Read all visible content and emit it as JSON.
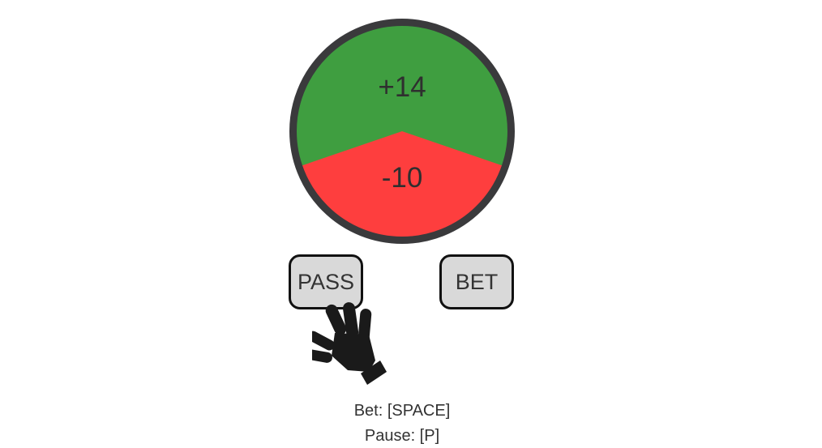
{
  "wheel": {
    "win_label": "+14",
    "lose_label": "-10",
    "win_color": "#3f9e40",
    "lose_color": "#fe3e3e",
    "rim_color": "#3a3a3c"
  },
  "buttons": {
    "pass_label": "PASS",
    "bet_label": "BET"
  },
  "cursor_icon": "hand-icon",
  "hints": {
    "bet": "Bet: [SPACE]",
    "pause": "Pause: [P]"
  }
}
